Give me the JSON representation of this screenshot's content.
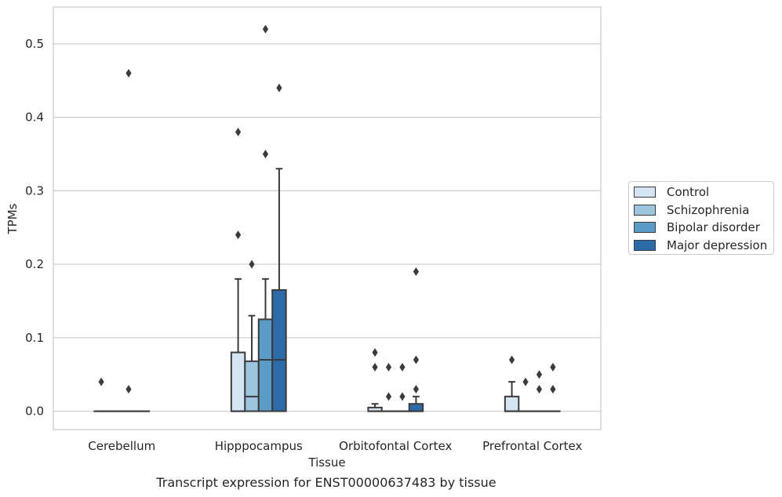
{
  "chart_data": {
    "type": "boxplot",
    "title": "",
    "caption": "Transcript expression for ENST00000637483 by tissue",
    "xlabel": "Tissue",
    "ylabel": "TPMs",
    "ylim": [
      -0.025,
      0.55
    ],
    "yticks": [
      0.0,
      0.1,
      0.2,
      0.3,
      0.4,
      0.5
    ],
    "ytick_labels": [
      "0.0",
      "0.1",
      "0.2",
      "0.3",
      "0.4",
      "0.5"
    ],
    "grid": "horizontal",
    "legend_position": "right",
    "categories": [
      "Cerebellum",
      "Hipppocampus",
      "Orbitofontal Cortex",
      "Prefrontal Cortex"
    ],
    "series": [
      {
        "name": "Control",
        "color": "#d5e4f3",
        "boxes": [
          {
            "q1": 0,
            "median": 0,
            "q3": 0,
            "whisker_low": 0,
            "whisker_high": 0,
            "outliers": [
              0.04
            ]
          },
          {
            "q1": 0,
            "median": 0,
            "q3": 0.08,
            "whisker_low": 0,
            "whisker_high": 0.18,
            "outliers": [
              0.24,
              0.38
            ]
          },
          {
            "q1": 0,
            "median": 0,
            "q3": 0.005,
            "whisker_low": 0,
            "whisker_high": 0.01,
            "outliers": [
              0.06,
              0.08
            ]
          },
          {
            "q1": 0,
            "median": 0,
            "q3": 0.02,
            "whisker_low": 0,
            "whisker_high": 0.04,
            "outliers": [
              0.07
            ]
          }
        ]
      },
      {
        "name": "Schizophrenia",
        "color": "#9dc5dd",
        "boxes": [
          {
            "q1": 0,
            "median": 0,
            "q3": 0,
            "whisker_low": 0,
            "whisker_high": 0,
            "outliers": []
          },
          {
            "q1": 0,
            "median": 0.02,
            "q3": 0.068,
            "whisker_low": 0,
            "whisker_high": 0.13,
            "outliers": [
              0.2
            ]
          },
          {
            "q1": 0,
            "median": 0,
            "q3": 0,
            "whisker_low": 0,
            "whisker_high": 0,
            "outliers": [
              0.02,
              0.06
            ]
          },
          {
            "q1": 0,
            "median": 0,
            "q3": 0,
            "whisker_low": 0,
            "whisker_high": 0,
            "outliers": [
              0.04
            ]
          }
        ]
      },
      {
        "name": "Bipolar disorder",
        "color": "#5a9cc6",
        "boxes": [
          {
            "q1": 0,
            "median": 0,
            "q3": 0,
            "whisker_low": 0,
            "whisker_high": 0,
            "outliers": [
              0.03,
              0.46
            ]
          },
          {
            "q1": 0,
            "median": 0.07,
            "q3": 0.125,
            "whisker_low": 0,
            "whisker_high": 0.18,
            "outliers": [
              0.35,
              0.52
            ]
          },
          {
            "q1": 0,
            "median": 0,
            "q3": 0,
            "whisker_low": 0,
            "whisker_high": 0,
            "outliers": [
              0.02,
              0.06
            ]
          },
          {
            "q1": 0,
            "median": 0,
            "q3": 0,
            "whisker_low": 0,
            "whisker_high": 0,
            "outliers": [
              0.03,
              0.05
            ]
          }
        ]
      },
      {
        "name": "Major depression",
        "color": "#2c6aa8",
        "boxes": [
          {
            "q1": 0,
            "median": 0,
            "q3": 0,
            "whisker_low": 0,
            "whisker_high": 0,
            "outliers": []
          },
          {
            "q1": 0,
            "median": 0.07,
            "q3": 0.165,
            "whisker_low": 0,
            "whisker_high": 0.33,
            "outliers": [
              0.44
            ]
          },
          {
            "q1": 0,
            "median": 0,
            "q3": 0.01,
            "whisker_low": 0,
            "whisker_high": 0.02,
            "outliers": [
              0.03,
              0.07,
              0.19
            ]
          },
          {
            "q1": 0,
            "median": 0,
            "q3": 0,
            "whisker_low": 0,
            "whisker_high": 0,
            "outliers": [
              0.03,
              0.06
            ]
          }
        ]
      }
    ]
  }
}
